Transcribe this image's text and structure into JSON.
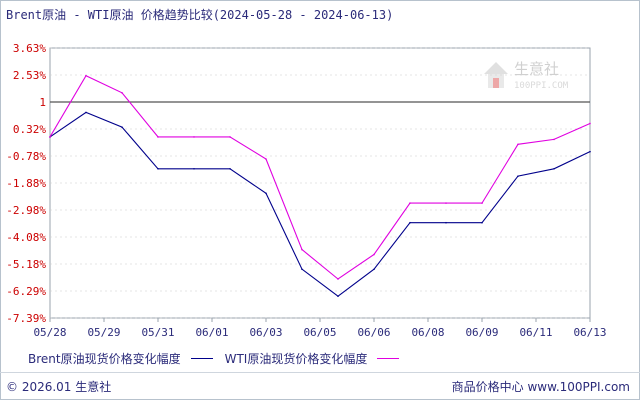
{
  "title": "Brent原油 - WTI原油 价格趋势比较(2024-05-28 - 2024-06-13)",
  "watermark": {
    "name": "生意社",
    "url": "100PPI.COM"
  },
  "footer": {
    "left": "© 2026.01 生意社",
    "right": "商品价格中心 www.100PPI.com"
  },
  "colors": {
    "brent": "#00008b",
    "wti": "#e000e0",
    "tick": "#cc0000",
    "text": "#2b2b7a",
    "baseline": "#555555",
    "grid": "#cccccc"
  },
  "chart_data": {
    "type": "line",
    "title": "Brent原油 - WTI原油 价格趋势比较(2024-05-28 - 2024-06-13)",
    "y_tick_labels": [
      "3.63%",
      "2.53%",
      "1",
      "0.32%",
      "-0.78%",
      "-1.88%",
      "-2.98%",
      "-4.08%",
      "-5.18%",
      "-6.29%",
      "-7.39%"
    ],
    "ylim": [
      -7.39,
      3.63
    ],
    "baseline": 1,
    "x_tick_labels": [
      "05/28",
      "05/29",
      "05/31",
      "06/01",
      "06/03",
      "06/05",
      "06/06",
      "06/08",
      "06/09",
      "06/11",
      "06/13"
    ],
    "x": [
      "05/28",
      "05/29",
      "05/30",
      "05/31",
      "06/01",
      "06/02",
      "06/03",
      "06/05",
      "06/06",
      "06/07",
      "06/08",
      "06/09",
      "06/10",
      "06/11",
      "06/12",
      "06/13"
    ],
    "series": [
      {
        "name": "Brent原油现货价格变化幅度",
        "color": "#00008b",
        "values": [
          0,
          1.0,
          0.4,
          -1.3,
          -1.3,
          -1.3,
          -2.3,
          -5.4,
          -6.5,
          -5.4,
          -3.5,
          -3.5,
          -3.5,
          -1.6,
          -1.3,
          -0.6
        ]
      },
      {
        "name": "WTI原油现货价格变化幅度",
        "color": "#e000e0",
        "values": [
          0,
          2.5,
          1.8,
          0,
          0,
          0,
          -0.9,
          -4.6,
          -5.8,
          -4.8,
          -2.7,
          -2.7,
          -2.7,
          -0.3,
          -0.1,
          0.55
        ]
      }
    ],
    "legend_position": "bottom-left",
    "grid": "horizontal"
  }
}
